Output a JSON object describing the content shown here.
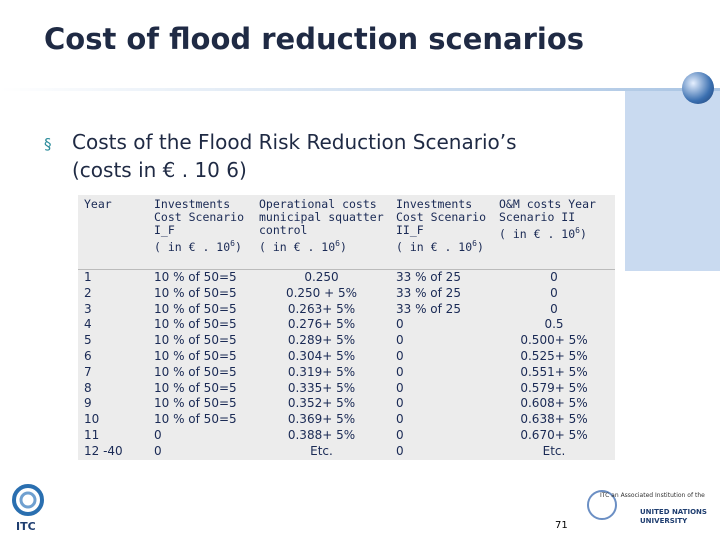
{
  "title": "Cost of flood reduction scenarios",
  "bullet": {
    "line1": "Costs of the Flood Risk Reduction Scenario’s",
    "line2": "(costs in € . 10 6)"
  },
  "table": {
    "header": [
      {
        "text": "Year"
      },
      {
        "text": "Investments Cost Scenario I_F",
        "unit": "( in € . 10",
        "exponent": "6",
        "unit_end": ")"
      },
      {
        "text": "Operational costs municipal squatter control",
        "unit": "( in € . 10",
        "exponent": "6",
        "unit_end": ")"
      },
      {
        "text": "Investments Cost Scenario II_F",
        "unit": "( in € . 10",
        "exponent": "6",
        "unit_end": ")"
      },
      {
        "text": "O&M costs Year Scenario II",
        "unit": "( in € . 10",
        "exponent": "6",
        "unit_end": ")"
      }
    ],
    "rows": [
      [
        "1",
        "10 % of 50=5",
        "0.250",
        "33 % of 25",
        "0"
      ],
      [
        "2",
        "10 % of 50=5",
        "0.250 + 5%",
        "33 % of 25",
        "0"
      ],
      [
        "3",
        "10 % of 50=5",
        "0.263+ 5%",
        "33 % of 25",
        "0"
      ],
      [
        "4",
        "10 % of 50=5",
        "0.276+ 5%",
        "0",
        "0.5"
      ],
      [
        "5",
        "10 % of 50=5",
        "0.289+ 5%",
        "0",
        "0.500+ 5%"
      ],
      [
        "6",
        "10 % of 50=5",
        "0.304+ 5%",
        "0",
        "0.525+ 5%"
      ],
      [
        "7",
        "10 % of 50=5",
        "0.319+ 5%",
        "0",
        "0.551+ 5%"
      ],
      [
        "8",
        "10 % of 50=5",
        "0.335+ 5%",
        "0",
        "0.579+ 5%"
      ],
      [
        "9",
        "10 % of 50=5",
        "0.352+ 5%",
        "0",
        "0.608+ 5%"
      ],
      [
        "10",
        "10 % of 50=5",
        "0.369+ 5%",
        "0",
        "0.638+ 5%"
      ],
      [
        "11",
        "0",
        "0.388+ 5%",
        "0",
        "0.670+ 5%"
      ],
      [
        "12 -40",
        "0",
        "Etc.",
        "0",
        "Etc."
      ]
    ]
  },
  "footer": {
    "logo": "ITC",
    "page_number": "71",
    "partner": "ITC an Associated Institution of the",
    "university": "UNITED NATIONS UNIVERSITY"
  }
}
